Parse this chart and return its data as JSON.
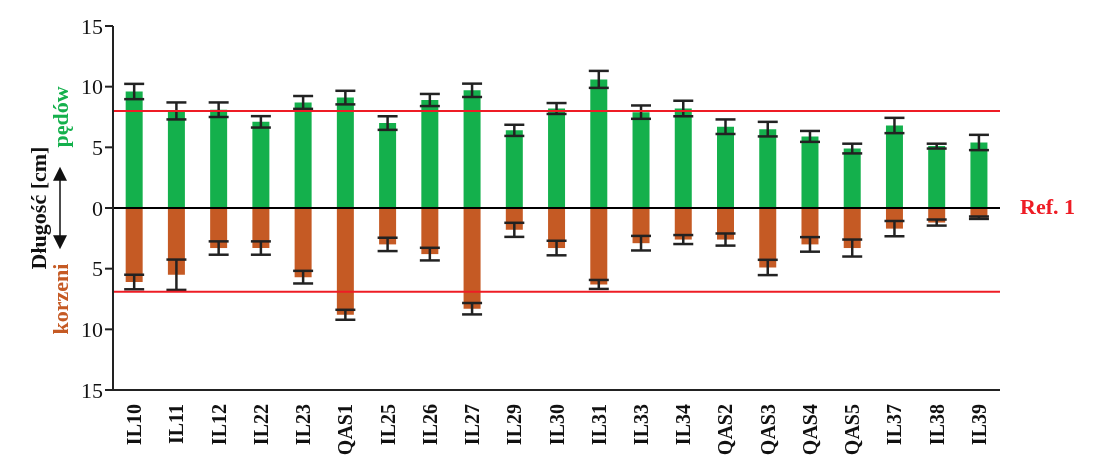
{
  "chart_data": {
    "type": "bar",
    "stacked": true,
    "ylabel": "Długość [cm]",
    "categories": [
      "IL10",
      "IL11",
      "IL12",
      "IL22",
      "IL23",
      "QAS1",
      "IL25",
      "IL26",
      "IL27",
      "IL29",
      "IL30",
      "IL31",
      "IL33",
      "IL34",
      "QAS2",
      "QAS3",
      "QAS4",
      "QAS5",
      "IL37",
      "IL38",
      "IL39"
    ],
    "series": [
      {
        "name": "pędów",
        "color": "#14b04c",
        "values": [
          9.6,
          8.0,
          8.1,
          7.1,
          8.7,
          9.1,
          7.0,
          8.9,
          9.7,
          6.4,
          8.2,
          10.6,
          7.9,
          8.2,
          6.7,
          6.5,
          5.9,
          4.9,
          6.8,
          5.1,
          5.4
        ],
        "errors": [
          0.63,
          0.7,
          0.6,
          0.47,
          0.53,
          0.56,
          0.56,
          0.5,
          0.55,
          0.46,
          0.45,
          0.7,
          0.55,
          0.64,
          0.6,
          0.6,
          0.45,
          0.4,
          0.63,
          0.2,
          0.63
        ]
      },
      {
        "name": "korzeni",
        "color": "#c55a24",
        "values": [
          -6.1,
          -5.5,
          -3.3,
          -3.3,
          -5.7,
          -8.8,
          -3.0,
          -3.8,
          -8.3,
          -1.8,
          -3.3,
          -6.3,
          -2.9,
          -2.6,
          -2.6,
          -4.9,
          -3.0,
          -3.3,
          -1.7,
          -1.2,
          -0.8
        ],
        "errors": [
          0.6,
          1.25,
          0.55,
          0.55,
          0.52,
          0.41,
          0.55,
          0.52,
          0.47,
          0.58,
          0.6,
          0.37,
          0.6,
          0.37,
          0.5,
          0.63,
          0.6,
          0.7,
          0.63,
          0.25,
          0.1
        ]
      }
    ],
    "ylim": [
      -15,
      15
    ],
    "yticks": [
      {
        "value": -15,
        "label": "15"
      },
      {
        "value": -10,
        "label": "10"
      },
      {
        "value": -5,
        "label": "5"
      },
      0,
      5,
      10,
      15
    ],
    "ref_lines": [
      {
        "axis": "y",
        "value": 8,
        "color": "#ee1c25"
      },
      {
        "axis": "y",
        "value": -6.9,
        "color": "#ee1c25"
      },
      {
        "axis": "y",
        "value": 0,
        "color": "#000000"
      }
    ],
    "annotations": [
      "Ref. 1"
    ],
    "grid": false
  }
}
